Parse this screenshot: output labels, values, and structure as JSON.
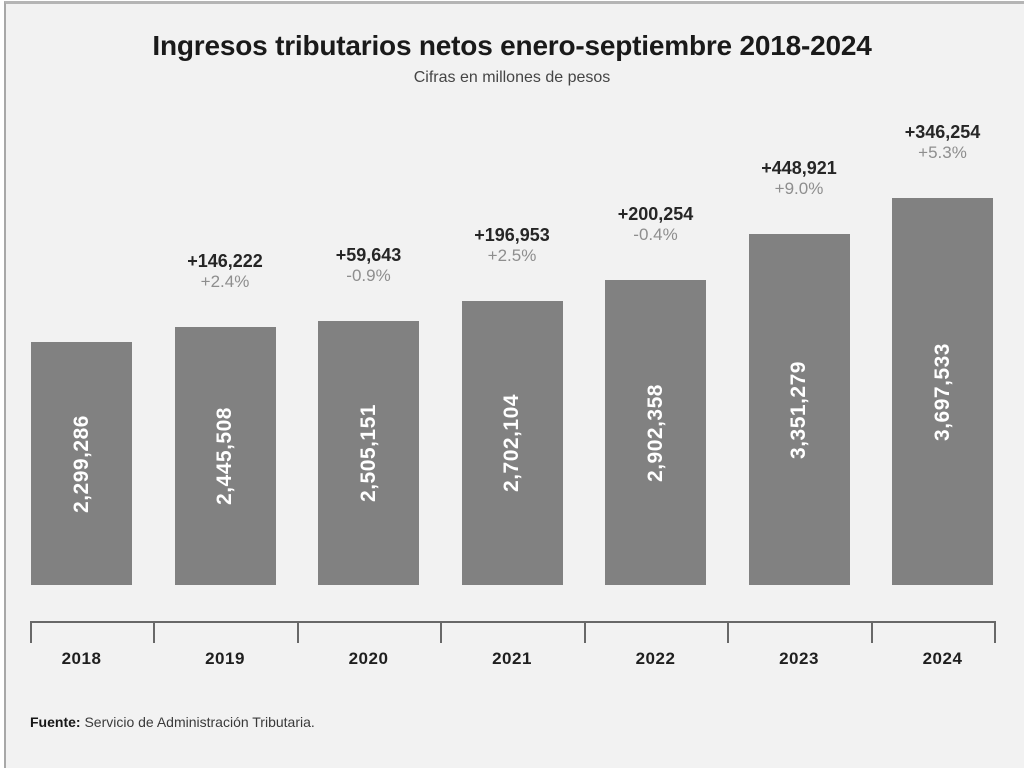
{
  "header": {
    "title": "Ingresos tributarios netos enero-septiembre 2018-2024",
    "subtitle": "Cifras en millones de pesos"
  },
  "chart_data": {
    "type": "bar",
    "title": "Ingresos tributarios netos enero-septiembre 2018-2024",
    "subtitle": "Cifras en millones de pesos",
    "unit": "millones de pesos",
    "categories": [
      "2018",
      "2019",
      "2020",
      "2021",
      "2022",
      "2023",
      "2024"
    ],
    "values": [
      2299286,
      2445508,
      2505151,
      2702104,
      2902358,
      3351279,
      3697533
    ],
    "value_labels": [
      "2,299,286",
      "2,445,508",
      "2,505,151",
      "2,702,104",
      "2,902,358",
      "3,351,279",
      "3,697,533"
    ],
    "annotations": [
      null,
      {
        "delta": "+146,222",
        "pct": "+2.4%"
      },
      {
        "delta": "+59,643",
        "pct": "-0.9%"
      },
      {
        "delta": "+196,953",
        "pct": "+2.5%"
      },
      {
        "delta": "+200,254",
        "pct": "-0.4%"
      },
      {
        "delta": "+448,921",
        "pct": "+9.0%"
      },
      {
        "delta": "+346,254",
        "pct": "+5.3%"
      }
    ],
    "bar_color": "#818181",
    "background_color": "#f2f2f2",
    "xlabel": "",
    "ylabel": "",
    "grid": false,
    "legend": false
  },
  "footer": {
    "source_label": "Fuente:",
    "source_text": " Servicio de Administración Tributaria."
  }
}
